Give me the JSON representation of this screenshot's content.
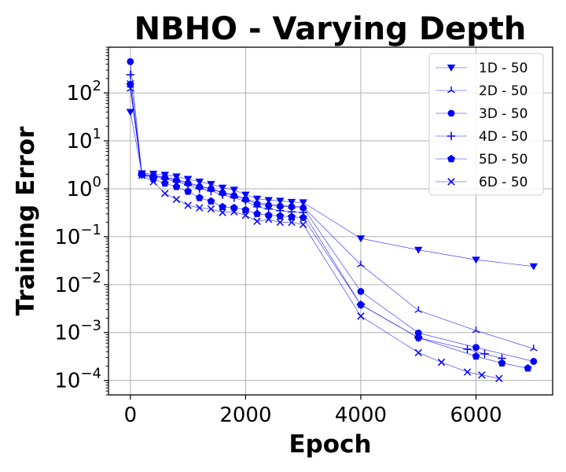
{
  "chart_data": {
    "type": "line",
    "title": "NBHO - Varying Depth",
    "xlabel": "Epoch",
    "ylabel": "Training Error",
    "xlim": [
      -380,
      7330
    ],
    "ylim": [
      5e-05,
      900
    ],
    "yscale": "log",
    "grid": true,
    "legend_position": "top-right",
    "x_ticks": [
      0,
      2000,
      4000,
      6000
    ],
    "y_ticks": [
      0.0001,
      0.001,
      0.01,
      0.1,
      1,
      10,
      100
    ],
    "y_tick_bases": [
      "10",
      "10",
      "10",
      "10",
      "10",
      "10",
      "10"
    ],
    "y_tick_exponents": [
      "−4",
      "−3",
      "−2",
      "−1",
      "0",
      "1",
      "2"
    ],
    "line_color": "#0000ff",
    "series": [
      {
        "name": "1D - 50",
        "marker": "triangle-down",
        "x": [
          0,
          200,
          400,
          600,
          800,
          1000,
          1200,
          1400,
          1600,
          1800,
          2000,
          2200,
          2400,
          2600,
          2800,
          3000,
          4000,
          5000,
          6000,
          7000
        ],
        "y": [
          40,
          2.1,
          2.05,
          1.95,
          1.8,
          1.6,
          1.4,
          1.25,
          1.05,
          0.95,
          0.75,
          0.62,
          0.58,
          0.56,
          0.53,
          0.52,
          0.092,
          0.053,
          0.033,
          0.024
        ]
      },
      {
        "name": "2D - 50",
        "marker": "tri-up",
        "x": [
          0,
          200,
          400,
          600,
          800,
          1000,
          1200,
          1400,
          1600,
          1800,
          2000,
          2200,
          2400,
          2600,
          2800,
          3000,
          4000,
          5000,
          6000,
          7000
        ],
        "y": [
          120,
          2.0,
          1.9,
          1.75,
          1.55,
          1.35,
          1.15,
          1.0,
          0.85,
          0.75,
          0.62,
          0.52,
          0.48,
          0.45,
          0.43,
          0.42,
          0.026,
          0.0029,
          0.0011,
          0.00046
        ]
      },
      {
        "name": "3D - 50",
        "marker": "circle",
        "x": [
          0,
          200,
          400,
          600,
          800,
          1000,
          1200,
          1400,
          1600,
          1800,
          2000,
          2200,
          2400,
          2600,
          2800,
          3000,
          4000,
          5000,
          6000,
          7000
        ],
        "y": [
          450,
          2.0,
          1.85,
          1.7,
          1.5,
          1.3,
          1.1,
          1.0,
          0.82,
          0.72,
          0.6,
          0.48,
          0.45,
          0.43,
          0.42,
          0.4,
          0.0072,
          0.00098,
          0.00049,
          0.00025
        ]
      },
      {
        "name": "4D - 50",
        "marker": "plus",
        "x": [
          0,
          200,
          400,
          600,
          800,
          1000,
          1200,
          1400,
          1600,
          1800,
          2000,
          2200,
          2400,
          2600,
          2800,
          3000,
          4000,
          5000,
          5850,
          6150,
          6450
        ],
        "y": [
          240,
          1.95,
          1.8,
          1.6,
          1.4,
          1.2,
          1.0,
          0.9,
          0.75,
          0.65,
          0.55,
          0.42,
          0.38,
          0.35,
          0.33,
          0.32,
          0.0038,
          0.00078,
          0.00045,
          0.00036,
          0.00029
        ]
      },
      {
        "name": "5D - 50",
        "marker": "pentagon",
        "x": [
          0,
          200,
          400,
          600,
          800,
          1000,
          1200,
          1400,
          1600,
          1800,
          2000,
          2200,
          2400,
          2600,
          2800,
          3000,
          4000,
          5000,
          6000,
          6450,
          6900
        ],
        "y": [
          150,
          2.0,
          1.6,
          1.3,
          1.1,
          0.88,
          0.65,
          0.55,
          0.42,
          0.4,
          0.36,
          0.3,
          0.28,
          0.27,
          0.26,
          0.25,
          0.0038,
          0.00078,
          0.00032,
          0.00023,
          0.00018
        ]
      },
      {
        "name": "6D - 50",
        "marker": "x",
        "x": [
          0,
          200,
          400,
          600,
          800,
          1000,
          1200,
          1400,
          1600,
          1800,
          2000,
          2200,
          2400,
          2600,
          2800,
          3000,
          4000,
          5000,
          5400,
          5850,
          6100,
          6400
        ],
        "y": [
          155,
          1.9,
          1.4,
          0.8,
          0.6,
          0.45,
          0.4,
          0.38,
          0.32,
          0.33,
          0.28,
          0.21,
          0.23,
          0.2,
          0.2,
          0.18,
          0.0022,
          0.00038,
          0.00024,
          0.00015,
          0.00013,
          0.00011
        ]
      }
    ]
  }
}
